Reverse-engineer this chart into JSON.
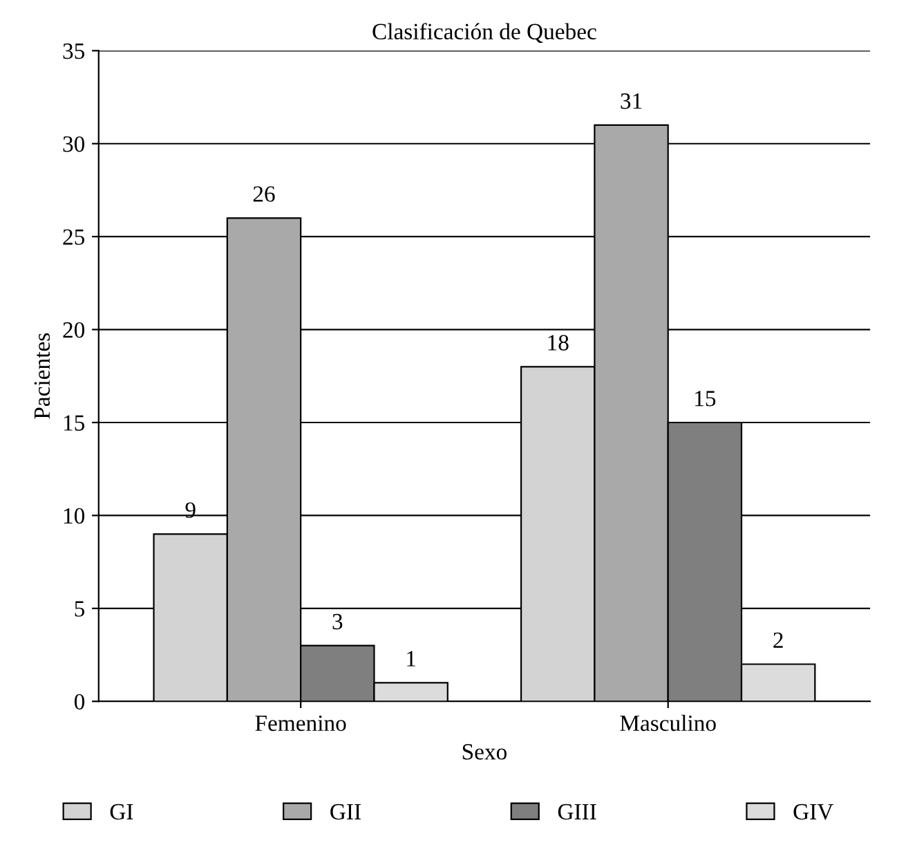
{
  "chart_data": {
    "type": "bar",
    "title": "Clasificación de Quebec",
    "xlabel": "Sexo",
    "ylabel": "Pacientes",
    "categories": [
      "Femenino",
      "Masculino"
    ],
    "series": [
      {
        "name": "GI",
        "color": "#d3d3d3",
        "values": [
          9,
          18
        ]
      },
      {
        "name": "GII",
        "color": "#a9a9a9",
        "values": [
          26,
          31
        ]
      },
      {
        "name": "GIII",
        "color": "#7f7f7f",
        "values": [
          3,
          15
        ]
      },
      {
        "name": "GIV",
        "color": "#dcdcdc",
        "values": [
          1,
          2
        ]
      }
    ],
    "ylim": [
      0,
      35
    ],
    "yticks": [
      0,
      5,
      10,
      15,
      20,
      25,
      30,
      35
    ],
    "grid": "y",
    "legend": "bottom",
    "data_labels": true
  }
}
